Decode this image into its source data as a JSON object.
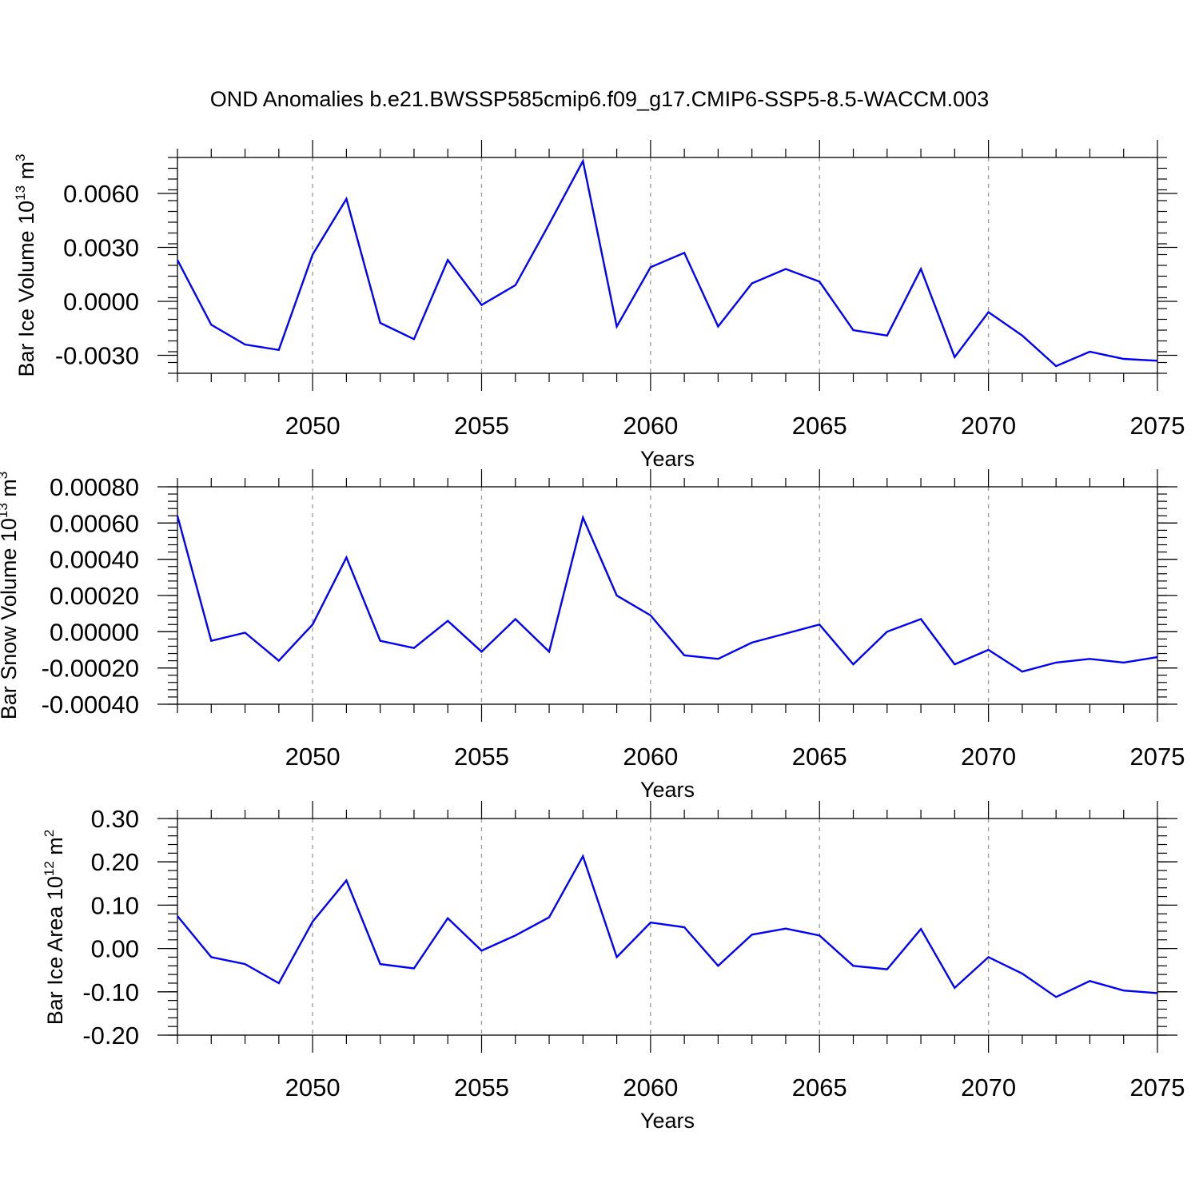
{
  "title": "OND Anomalies b.e21.BWSSP585cmip6.f09_g17.CMIP6-SSP5-8.5-WACCM.003",
  "chart_data": [
    {
      "type": "line",
      "ylabel_main": "Bar Ice Volume 10",
      "ylabel_exp": "13",
      "ylabel_unit": " m",
      "ylabel_unit_exp": "3",
      "xlabel": "Years",
      "xlim": [
        2046,
        2075
      ],
      "ylim": [
        -0.004,
        0.008
      ],
      "yticks": [
        -0.003,
        0.0,
        0.003,
        0.006
      ],
      "ytick_labels": [
        "-0.0030",
        "0.0000",
        "0.0030",
        "0.0060"
      ],
      "xticks": [
        2050,
        2055,
        2060,
        2065,
        2070,
        2075
      ],
      "xtick_labels": [
        "2050",
        "2055",
        "2060",
        "2065",
        "2070",
        "2075"
      ],
      "series": [
        {
          "name": "Bar Ice Volume",
          "color": "#0000ff",
          "x": [
            2046,
            2047,
            2048,
            2049,
            2050,
            2051,
            2052,
            2053,
            2054,
            2055,
            2056,
            2057,
            2058,
            2059,
            2060,
            2061,
            2062,
            2063,
            2064,
            2065,
            2066,
            2067,
            2068,
            2069,
            2070,
            2071,
            2072,
            2073,
            2074,
            2075
          ],
          "values": [
            0.0023,
            -0.0013,
            -0.0024,
            -0.0027,
            0.0026,
            0.0057,
            -0.0012,
            -0.0021,
            0.0023,
            -0.0002,
            0.0009,
            0.0043,
            0.0078,
            -0.0014,
            0.0019,
            0.0027,
            -0.0014,
            0.001,
            0.0018,
            0.0011,
            -0.0016,
            -0.0019,
            0.0018,
            -0.0031,
            -0.0006,
            -0.0019,
            -0.0036,
            -0.0028,
            -0.0032,
            -0.0033
          ]
        }
      ]
    },
    {
      "type": "line",
      "ylabel_main": "Bar Snow Volume 10",
      "ylabel_exp": "13",
      "ylabel_unit": " m",
      "ylabel_unit_exp": "3",
      "xlabel": "Years",
      "xlim": [
        2046,
        2075
      ],
      "ylim": [
        -0.0004,
        0.0008
      ],
      "yticks": [
        -0.0004,
        -0.0002,
        0.0,
        0.0002,
        0.0004,
        0.0006,
        0.0008
      ],
      "ytick_labels": [
        "-0.00040",
        "-0.00020",
        "0.00000",
        "0.00020",
        "0.00040",
        "0.00060",
        "0.00080"
      ],
      "xticks": [
        2050,
        2055,
        2060,
        2065,
        2070,
        2075
      ],
      "xtick_labels": [
        "2050",
        "2055",
        "2060",
        "2065",
        "2070",
        "2075"
      ],
      "series": [
        {
          "name": "Bar Snow Volume",
          "color": "#0000ff",
          "x": [
            2046,
            2047,
            2048,
            2049,
            2050,
            2051,
            2052,
            2053,
            2054,
            2055,
            2056,
            2057,
            2058,
            2059,
            2060,
            2061,
            2062,
            2063,
            2064,
            2065,
            2066,
            2067,
            2068,
            2069,
            2070,
            2071,
            2072,
            2073,
            2074,
            2075
          ],
          "values": [
            0.00064,
            -5e-05,
            -5e-06,
            -0.00016,
            4e-05,
            0.00041,
            -5e-05,
            -9e-05,
            6e-05,
            -0.00011,
            7e-05,
            -0.00011,
            0.00063,
            0.0002,
            9e-05,
            -0.00013,
            -0.00015,
            -6e-05,
            -1e-05,
            4e-05,
            -0.00018,
            0.0,
            7e-05,
            -0.00018,
            -0.0001,
            -0.00022,
            -0.00017,
            -0.00015,
            -0.00017,
            -0.00014
          ]
        }
      ]
    },
    {
      "type": "line",
      "ylabel_main": "Bar Ice Area 10",
      "ylabel_exp": "12",
      "ylabel_unit": " m",
      "ylabel_unit_exp": "2",
      "xlabel": "Years",
      "xlim": [
        2046,
        2075
      ],
      "ylim": [
        -0.2,
        0.3
      ],
      "yticks": [
        -0.2,
        -0.1,
        0.0,
        0.1,
        0.2,
        0.3
      ],
      "ytick_labels": [
        "-0.20",
        "-0.10",
        "0.00",
        "0.10",
        "0.20",
        "0.30"
      ],
      "xticks": [
        2050,
        2055,
        2060,
        2065,
        2070,
        2075
      ],
      "xtick_labels": [
        "2050",
        "2055",
        "2060",
        "2065",
        "2070",
        "2075"
      ],
      "series": [
        {
          "name": "Bar Ice Area",
          "color": "#0000ff",
          "x": [
            2046,
            2047,
            2048,
            2049,
            2050,
            2051,
            2052,
            2053,
            2054,
            2055,
            2056,
            2057,
            2058,
            2059,
            2060,
            2061,
            2062,
            2063,
            2064,
            2065,
            2066,
            2067,
            2068,
            2069,
            2070,
            2071,
            2072,
            2073,
            2074,
            2075
          ],
          "values": [
            0.075,
            -0.02,
            -0.036,
            -0.08,
            0.062,
            0.157,
            -0.036,
            -0.046,
            0.07,
            -0.005,
            0.03,
            0.072,
            0.213,
            -0.02,
            0.06,
            0.049,
            -0.04,
            0.032,
            0.046,
            0.03,
            -0.04,
            -0.048,
            0.045,
            -0.091,
            -0.02,
            -0.058,
            -0.112,
            -0.075,
            -0.097,
            -0.103
          ]
        }
      ]
    }
  ]
}
